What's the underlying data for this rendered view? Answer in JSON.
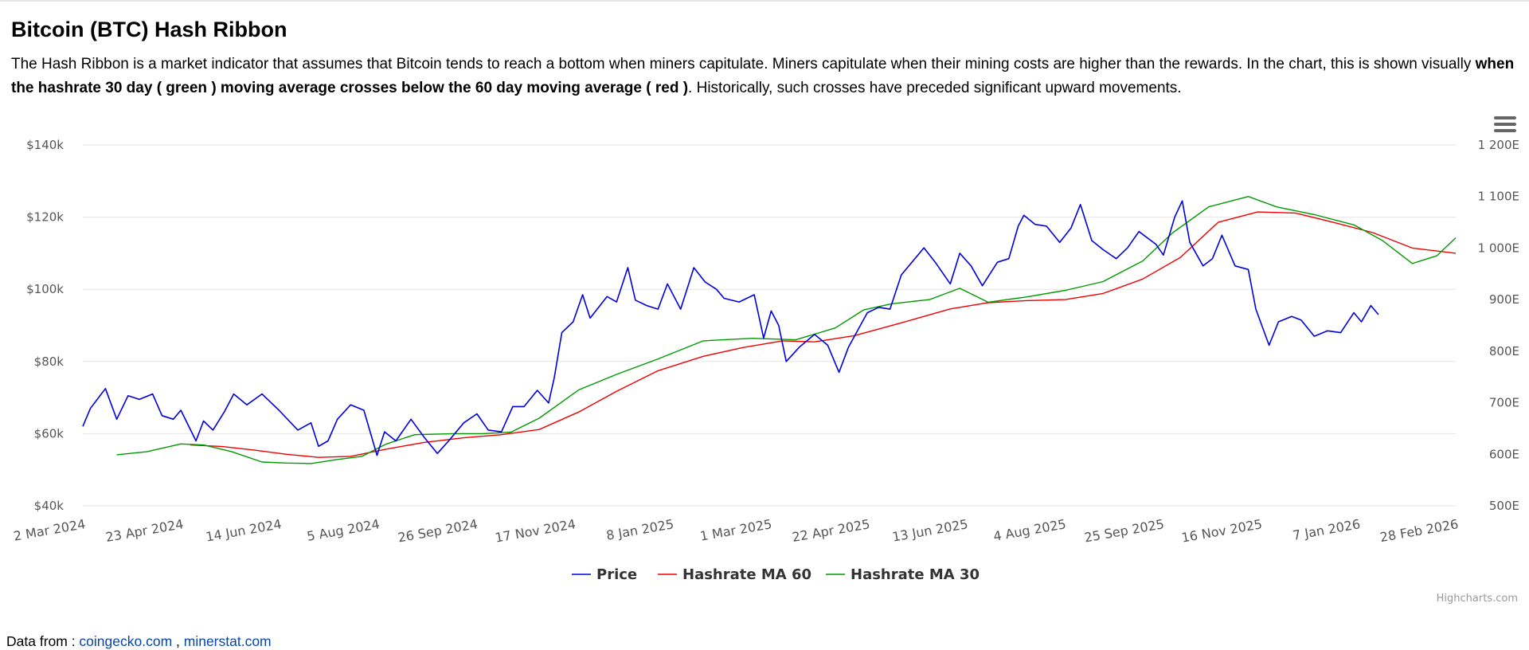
{
  "page": {
    "title": "Bitcoin (BTC) Hash Ribbon",
    "desc_part1": "The Hash Ribbon is a market indicator that assumes that Bitcoin tends to reach a bottom when miners capitulate. Miners capitulate when their mining costs are higher than the rewards. In the chart, this is shown visually ",
    "desc_bold": "when the hashrate 30 day ( green ) moving average crosses below the 60 day moving average ( red )",
    "desc_part2": ". Historically, such crosses have preceded significant upward movements.",
    "source_prefix": "Data from : ",
    "source_link1": "coingecko.com",
    "source_sep": " , ",
    "source_link2": "minerstat.com",
    "credits": "Highcharts.com"
  },
  "colors": {
    "price": "#0000dd",
    "ma60": "#ee0000",
    "ma30": "#009900",
    "grid": "#e6e6e6",
    "axis_label": "#555555"
  },
  "icons": {
    "menu": "hamburger-menu-icon"
  },
  "chart_data": {
    "type": "line",
    "x_ticks": [
      "2 Mar 2024",
      "23 Apr 2024",
      "14 Jun 2024",
      "5 Aug 2024",
      "26 Sep 2024",
      "17 Nov 2024",
      "8 Jan 2025",
      "1 Mar 2025",
      "22 Apr 2025",
      "13 Jun 2025",
      "4 Aug 2025",
      "25 Sep 2025",
      "16 Nov 2025",
      "7 Jan 2026",
      "28 Feb 2026"
    ],
    "x_range": [
      "2024-03-02",
      "2026-02-28"
    ],
    "y_left": {
      "min": 40000,
      "max": 140000,
      "ticks": [
        "$40k",
        "$60k",
        "$80k",
        "$100k",
        "$120k",
        "$140k"
      ]
    },
    "y_right": {
      "min": 500,
      "max": 1200,
      "ticks": [
        "500E",
        "600E",
        "700E",
        "800E",
        "900E",
        "1 000E",
        "1 100E",
        "1 200E"
      ]
    },
    "grid": true,
    "legend_position": "bottom-center",
    "series": [
      {
        "name": "Price",
        "axis": "left",
        "points": [
          [
            "2024-03-02",
            62000
          ],
          [
            "2024-03-06",
            67000
          ],
          [
            "2024-03-14",
            72500
          ],
          [
            "2024-03-20",
            64000
          ],
          [
            "2024-03-26",
            70500
          ],
          [
            "2024-04-01",
            69500
          ],
          [
            "2024-04-08",
            71000
          ],
          [
            "2024-04-13",
            65000
          ],
          [
            "2024-04-19",
            64000
          ],
          [
            "2024-04-23",
            66500
          ],
          [
            "2024-05-01",
            58000
          ],
          [
            "2024-05-05",
            63500
          ],
          [
            "2024-05-10",
            61000
          ],
          [
            "2024-05-16",
            66000
          ],
          [
            "2024-05-21",
            71000
          ],
          [
            "2024-05-28",
            68000
          ],
          [
            "2024-06-05",
            71000
          ],
          [
            "2024-06-14",
            66500
          ],
          [
            "2024-06-24",
            61000
          ],
          [
            "2024-07-01",
            63000
          ],
          [
            "2024-07-05",
            56500
          ],
          [
            "2024-07-10",
            58000
          ],
          [
            "2024-07-15",
            64000
          ],
          [
            "2024-07-22",
            68000
          ],
          [
            "2024-07-29",
            66500
          ],
          [
            "2024-08-05",
            54000
          ],
          [
            "2024-08-09",
            60500
          ],
          [
            "2024-08-15",
            58000
          ],
          [
            "2024-08-23",
            64000
          ],
          [
            "2024-08-30",
            59000
          ],
          [
            "2024-09-06",
            54500
          ],
          [
            "2024-09-12",
            58000
          ],
          [
            "2024-09-20",
            63000
          ],
          [
            "2024-09-27",
            65500
          ],
          [
            "2024-10-03",
            61000
          ],
          [
            "2024-10-10",
            60500
          ],
          [
            "2024-10-16",
            67500
          ],
          [
            "2024-10-22",
            67500
          ],
          [
            "2024-10-29",
            72000
          ],
          [
            "2024-11-04",
            68500
          ],
          [
            "2024-11-07",
            75500
          ],
          [
            "2024-11-11",
            88000
          ],
          [
            "2024-11-17",
            91000
          ],
          [
            "2024-11-22",
            98500
          ],
          [
            "2024-11-26",
            92000
          ],
          [
            "2024-12-05",
            98000
          ],
          [
            "2024-12-10",
            96500
          ],
          [
            "2024-12-16",
            106000
          ],
          [
            "2024-12-20",
            97000
          ],
          [
            "2024-12-26",
            95500
          ],
          [
            "2025-01-01",
            94500
          ],
          [
            "2025-01-06",
            101500
          ],
          [
            "2025-01-13",
            94500
          ],
          [
            "2025-01-20",
            106000
          ],
          [
            "2025-01-26",
            102000
          ],
          [
            "2025-02-01",
            100000
          ],
          [
            "2025-02-05",
            97500
          ],
          [
            "2025-02-13",
            96500
          ],
          [
            "2025-02-21",
            98500
          ],
          [
            "2025-02-26",
            86500
          ],
          [
            "2025-03-02",
            94000
          ],
          [
            "2025-03-06",
            90000
          ],
          [
            "2025-03-10",
            80000
          ],
          [
            "2025-03-17",
            84000
          ],
          [
            "2025-03-25",
            87500
          ],
          [
            "2025-04-01",
            84500
          ],
          [
            "2025-04-07",
            77000
          ],
          [
            "2025-04-12",
            84000
          ],
          [
            "2025-04-22",
            93500
          ],
          [
            "2025-04-28",
            95000
          ],
          [
            "2025-05-04",
            94500
          ],
          [
            "2025-05-10",
            104000
          ],
          [
            "2025-05-22",
            111500
          ],
          [
            "2025-05-28",
            107500
          ],
          [
            "2025-06-05",
            101500
          ],
          [
            "2025-06-10",
            110000
          ],
          [
            "2025-06-16",
            106500
          ],
          [
            "2025-06-22",
            101000
          ],
          [
            "2025-06-30",
            107500
          ],
          [
            "2025-07-06",
            108500
          ],
          [
            "2025-07-11",
            117500
          ],
          [
            "2025-07-14",
            120500
          ],
          [
            "2025-07-20",
            118000
          ],
          [
            "2025-07-26",
            117500
          ],
          [
            "2025-08-02",
            113000
          ],
          [
            "2025-08-08",
            117000
          ],
          [
            "2025-08-13",
            123500
          ],
          [
            "2025-08-19",
            113500
          ],
          [
            "2025-08-25",
            111000
          ],
          [
            "2025-09-01",
            108500
          ],
          [
            "2025-09-07",
            111500
          ],
          [
            "2025-09-13",
            116000
          ],
          [
            "2025-09-22",
            112500
          ],
          [
            "2025-09-26",
            109500
          ],
          [
            "2025-10-02",
            120000
          ],
          [
            "2025-10-06",
            124500
          ],
          [
            "2025-10-10",
            113000
          ],
          [
            "2025-10-17",
            106500
          ],
          [
            "2025-10-22",
            108500
          ],
          [
            "2025-10-27",
            115000
          ],
          [
            "2025-11-03",
            106500
          ],
          [
            "2025-11-10",
            105500
          ],
          [
            "2025-11-14",
            94500
          ],
          [
            "2025-11-21",
            84500
          ],
          [
            "2025-11-26",
            91000
          ],
          [
            "2025-12-03",
            92500
          ],
          [
            "2025-12-08",
            91500
          ],
          [
            "2025-12-15",
            87000
          ],
          [
            "2025-12-22",
            88500
          ],
          [
            "2025-12-29",
            88000
          ],
          [
            "2026-01-05",
            93500
          ],
          [
            "2026-01-09",
            91000
          ],
          [
            "2026-01-14",
            95500
          ],
          [
            "2026-01-18",
            93000
          ]
        ]
      },
      {
        "name": "Hashrate MA 60",
        "axis": "right",
        "points": [
          [
            "2024-04-28",
            618
          ],
          [
            "2024-05-15",
            615
          ],
          [
            "2024-06-01",
            608
          ],
          [
            "2024-06-18",
            600
          ],
          [
            "2024-07-05",
            594
          ],
          [
            "2024-07-22",
            596
          ],
          [
            "2024-08-10",
            610
          ],
          [
            "2024-08-30",
            623
          ],
          [
            "2024-09-20",
            632
          ],
          [
            "2024-10-10",
            638
          ],
          [
            "2024-10-30",
            648
          ],
          [
            "2024-11-20",
            682
          ],
          [
            "2024-12-10",
            722
          ],
          [
            "2025-01-01",
            762
          ],
          [
            "2025-01-25",
            790
          ],
          [
            "2025-02-15",
            807
          ],
          [
            "2025-03-08",
            820
          ],
          [
            "2025-03-25",
            818
          ],
          [
            "2025-04-15",
            830
          ],
          [
            "2025-05-10",
            855
          ],
          [
            "2025-06-05",
            882
          ],
          [
            "2025-06-25",
            894
          ],
          [
            "2025-07-15",
            898
          ],
          [
            "2025-08-05",
            900
          ],
          [
            "2025-08-25",
            912
          ],
          [
            "2025-09-15",
            940
          ],
          [
            "2025-10-05",
            982
          ],
          [
            "2025-10-25",
            1050
          ],
          [
            "2025-11-15",
            1070
          ],
          [
            "2025-12-05",
            1068
          ],
          [
            "2025-12-25",
            1050
          ],
          [
            "2026-01-15",
            1030
          ],
          [
            "2026-02-05",
            1000
          ],
          [
            "2026-02-28",
            990
          ]
        ]
      },
      {
        "name": "Hashrate MA 30",
        "axis": "right",
        "points": [
          [
            "2024-03-20",
            599
          ],
          [
            "2024-04-05",
            605
          ],
          [
            "2024-04-23",
            620
          ],
          [
            "2024-05-05",
            618
          ],
          [
            "2024-05-20",
            605
          ],
          [
            "2024-06-05",
            585
          ],
          [
            "2024-06-18",
            583
          ],
          [
            "2024-07-01",
            582
          ],
          [
            "2024-07-15",
            590
          ],
          [
            "2024-07-28",
            596
          ],
          [
            "2024-08-10",
            620
          ],
          [
            "2024-08-25",
            638
          ],
          [
            "2024-09-15",
            640
          ],
          [
            "2024-09-30",
            640
          ],
          [
            "2024-10-15",
            643
          ],
          [
            "2024-10-30",
            670
          ],
          [
            "2024-11-20",
            725
          ],
          [
            "2024-12-10",
            755
          ],
          [
            "2025-01-01",
            785
          ],
          [
            "2025-01-25",
            820
          ],
          [
            "2025-02-20",
            825
          ],
          [
            "2025-03-15",
            822
          ],
          [
            "2025-04-05",
            845
          ],
          [
            "2025-04-20",
            880
          ],
          [
            "2025-05-05",
            892
          ],
          [
            "2025-05-25",
            900
          ],
          [
            "2025-06-10",
            922
          ],
          [
            "2025-06-25",
            895
          ],
          [
            "2025-07-15",
            905
          ],
          [
            "2025-08-05",
            918
          ],
          [
            "2025-08-25",
            935
          ],
          [
            "2025-09-15",
            975
          ],
          [
            "2025-10-01",
            1030
          ],
          [
            "2025-10-20",
            1080
          ],
          [
            "2025-11-10",
            1100
          ],
          [
            "2025-11-25",
            1080
          ],
          [
            "2025-12-15",
            1065
          ],
          [
            "2026-01-05",
            1045
          ],
          [
            "2026-01-20",
            1015
          ],
          [
            "2026-02-05",
            970
          ],
          [
            "2026-02-18",
            985
          ],
          [
            "2026-02-28",
            1020
          ]
        ]
      }
    ]
  }
}
